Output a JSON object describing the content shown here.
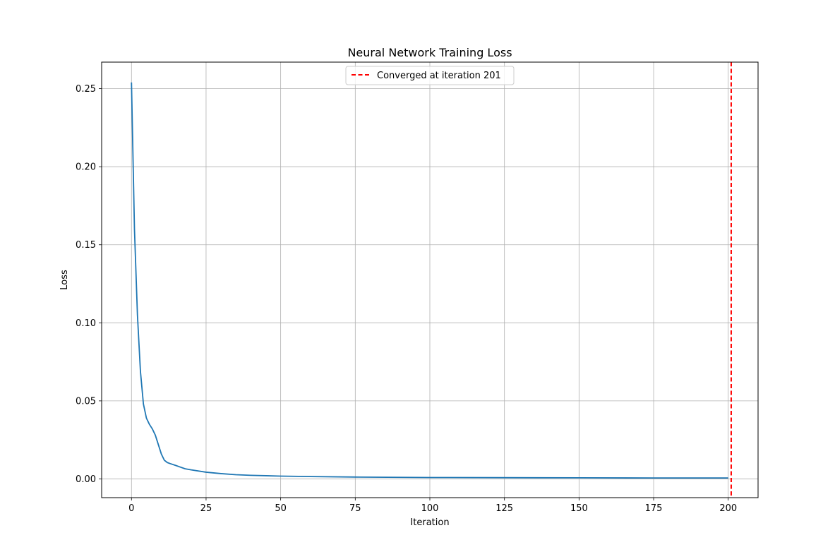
{
  "chart_data": {
    "type": "line",
    "title": "Neural Network Training Loss",
    "xlabel": "Iteration",
    "ylabel": "Loss",
    "xlim": [
      -10,
      210
    ],
    "ylim": [
      -0.012,
      0.267
    ],
    "xticks": [
      0,
      25,
      50,
      75,
      100,
      125,
      150,
      175,
      200
    ],
    "yticks": [
      0.0,
      0.05,
      0.1,
      0.15,
      0.2,
      0.25
    ],
    "ytick_labels": [
      "0.00",
      "0.05",
      "0.10",
      "0.15",
      "0.20",
      "0.25"
    ],
    "grid": true,
    "legend_position": "upper center",
    "series": [
      {
        "color": "#1f77b4",
        "x": [
          0,
          1,
          2,
          3,
          4,
          5,
          6,
          7,
          8,
          9,
          10,
          11,
          12,
          13,
          15,
          18,
          20,
          25,
          30,
          35,
          40,
          50,
          60,
          75,
          100,
          125,
          150,
          175,
          200
        ],
        "y": [
          0.254,
          0.16,
          0.105,
          0.069,
          0.048,
          0.039,
          0.035,
          0.032,
          0.028,
          0.022,
          0.016,
          0.012,
          0.0105,
          0.0098,
          0.0085,
          0.0065,
          0.0058,
          0.0043,
          0.0034,
          0.0027,
          0.0023,
          0.0018,
          0.0015,
          0.0012,
          0.0009,
          0.0008,
          0.0007,
          0.0006,
          0.0006
        ]
      }
    ],
    "reference_lines": [
      {
        "orientation": "vertical",
        "x": 201,
        "style": "dashed",
        "color": "#ff0000",
        "label": "Converged at iteration 201"
      }
    ]
  }
}
